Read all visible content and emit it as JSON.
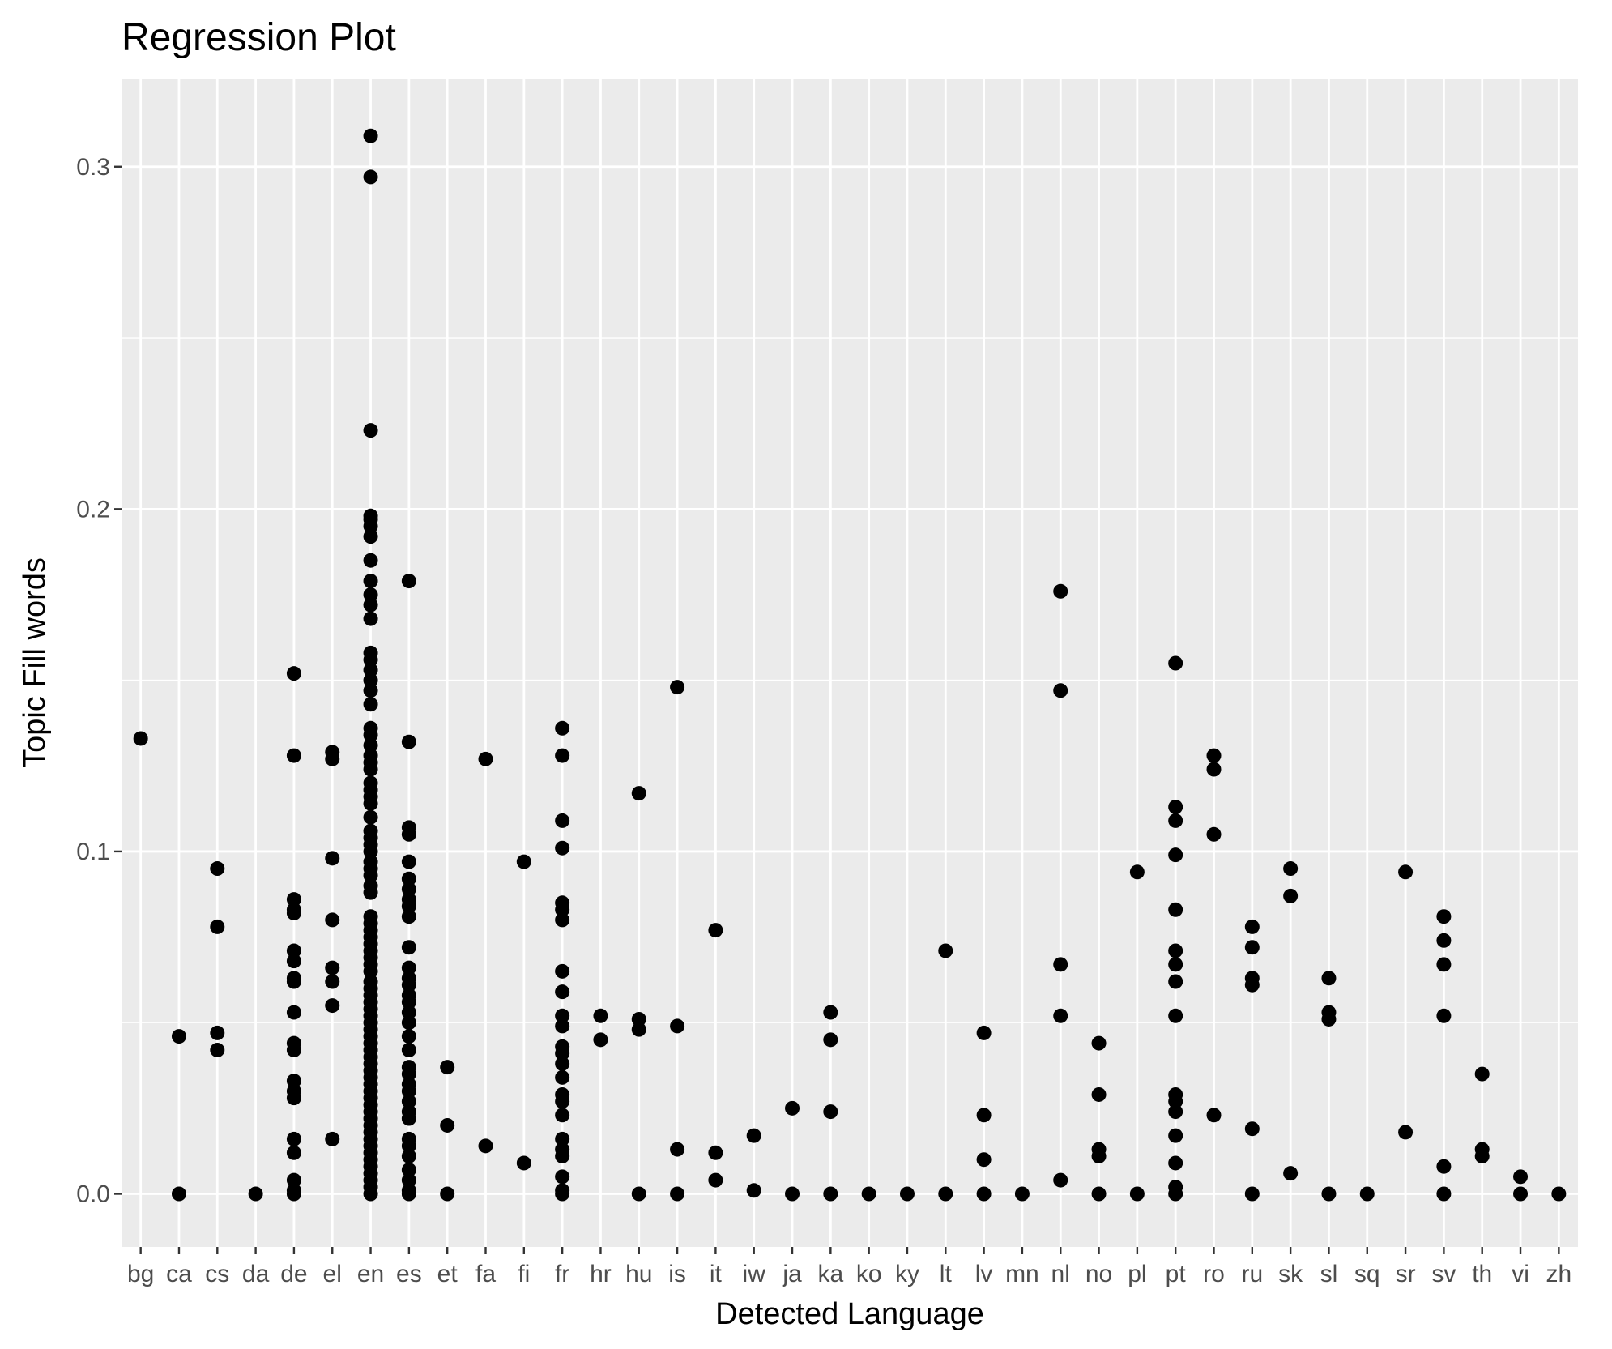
{
  "chart_data": {
    "type": "scatter",
    "title": "Regression Plot",
    "xlabel": "Detected Language",
    "ylabel": "Topic Fill words",
    "ylim": [
      -0.0155,
      0.3255
    ],
    "yticks": [
      0.0,
      0.1,
      0.2,
      0.3
    ],
    "ytick_labels": [
      "0.0",
      "0.1",
      "0.2",
      "0.3"
    ],
    "grid": true,
    "legend": "none",
    "colors": {
      "panel": "#ebebeb",
      "grid": "#ffffff",
      "point": "#000000",
      "tick": "#333333"
    },
    "categories": [
      "bg",
      "ca",
      "cs",
      "da",
      "de",
      "el",
      "en",
      "es",
      "et",
      "fa",
      "fi",
      "fr",
      "hr",
      "hu",
      "is",
      "it",
      "iw",
      "ja",
      "ka",
      "ko",
      "ky",
      "lt",
      "lv",
      "mn",
      "nl",
      "no",
      "pl",
      "pt",
      "ro",
      "ru",
      "sk",
      "sl",
      "sq",
      "sr",
      "sv",
      "th",
      "vi",
      "zh"
    ],
    "points": {
      "bg": [
        0.133
      ],
      "ca": [
        0.046,
        0.0
      ],
      "cs": [
        0.095,
        0.078,
        0.047,
        0.042
      ],
      "da": [
        0.0
      ],
      "de": [
        0.152,
        0.128,
        0.086,
        0.083,
        0.082,
        0.071,
        0.068,
        0.063,
        0.062,
        0.053,
        0.044,
        0.042,
        0.033,
        0.03,
        0.028,
        0.016,
        0.012,
        0.004,
        0.001,
        0.0
      ],
      "el": [
        0.129,
        0.127,
        0.098,
        0.08,
        0.066,
        0.062,
        0.055,
        0.016
      ],
      "en": [
        0.309,
        0.297,
        0.223,
        0.198,
        0.197,
        0.195,
        0.192,
        0.185,
        0.179,
        0.175,
        0.172,
        0.168,
        0.158,
        0.156,
        0.153,
        0.15,
        0.147,
        0.143,
        0.136,
        0.134,
        0.131,
        0.128,
        0.126,
        0.124,
        0.12,
        0.118,
        0.116,
        0.114,
        0.11,
        0.106,
        0.104,
        0.102,
        0.1,
        0.097,
        0.095,
        0.093,
        0.09,
        0.088,
        0.081,
        0.079,
        0.077,
        0.075,
        0.073,
        0.071,
        0.069,
        0.067,
        0.065,
        0.062,
        0.06,
        0.058,
        0.056,
        0.054,
        0.052,
        0.05,
        0.048,
        0.046,
        0.044,
        0.042,
        0.04,
        0.038,
        0.036,
        0.034,
        0.032,
        0.03,
        0.028,
        0.026,
        0.024,
        0.022,
        0.02,
        0.018,
        0.016,
        0.014,
        0.012,
        0.01,
        0.008,
        0.006,
        0.004,
        0.002,
        0.0
      ],
      "es": [
        0.179,
        0.132,
        0.107,
        0.105,
        0.097,
        0.092,
        0.089,
        0.086,
        0.084,
        0.081,
        0.072,
        0.066,
        0.063,
        0.061,
        0.058,
        0.056,
        0.053,
        0.05,
        0.046,
        0.042,
        0.037,
        0.035,
        0.032,
        0.03,
        0.027,
        0.024,
        0.022,
        0.016,
        0.014,
        0.011,
        0.007,
        0.004,
        0.001,
        0.0
      ],
      "et": [
        0.037,
        0.02,
        0.0
      ],
      "fa": [
        0.127,
        0.014
      ],
      "fi": [
        0.097,
        0.009
      ],
      "fr": [
        0.136,
        0.128,
        0.109,
        0.101,
        0.085,
        0.083,
        0.08,
        0.065,
        0.059,
        0.052,
        0.049,
        0.043,
        0.041,
        0.038,
        0.034,
        0.029,
        0.027,
        0.023,
        0.016,
        0.013,
        0.011,
        0.005,
        0.001,
        0.0
      ],
      "hr": [
        0.052,
        0.045
      ],
      "hu": [
        0.117,
        0.051,
        0.048,
        0.0
      ],
      "is": [
        0.148,
        0.049,
        0.013,
        0.0
      ],
      "it": [
        0.077,
        0.012,
        0.004
      ],
      "iw": [
        0.017,
        0.001
      ],
      "ja": [
        0.025,
        0.0
      ],
      "ka": [
        0.053,
        0.045,
        0.024,
        0.0
      ],
      "ko": [
        0.0
      ],
      "ky": [
        0.0
      ],
      "lt": [
        0.071,
        0.0
      ],
      "lv": [
        0.047,
        0.023,
        0.01,
        0.0
      ],
      "mn": [
        0.0
      ],
      "nl": [
        0.176,
        0.147,
        0.067,
        0.052,
        0.004
      ],
      "no": [
        0.044,
        0.029,
        0.013,
        0.011,
        0.0
      ],
      "pl": [
        0.094,
        0.0
      ],
      "pt": [
        0.155,
        0.113,
        0.109,
        0.099,
        0.083,
        0.071,
        0.067,
        0.062,
        0.052,
        0.029,
        0.027,
        0.024,
        0.017,
        0.009,
        0.002,
        0.0
      ],
      "ro": [
        0.128,
        0.124,
        0.105,
        0.023
      ],
      "ru": [
        0.078,
        0.072,
        0.063,
        0.061,
        0.019,
        0.0
      ],
      "sk": [
        0.095,
        0.087,
        0.006
      ],
      "sl": [
        0.063,
        0.053,
        0.051,
        0.0
      ],
      "sq": [
        0.0
      ],
      "sr": [
        0.094,
        0.018
      ],
      "sv": [
        0.081,
        0.074,
        0.067,
        0.052,
        0.008,
        0.0
      ],
      "th": [
        0.035,
        0.013,
        0.011
      ],
      "vi": [
        0.005,
        0.0
      ],
      "zh": [
        0.0
      ]
    }
  }
}
